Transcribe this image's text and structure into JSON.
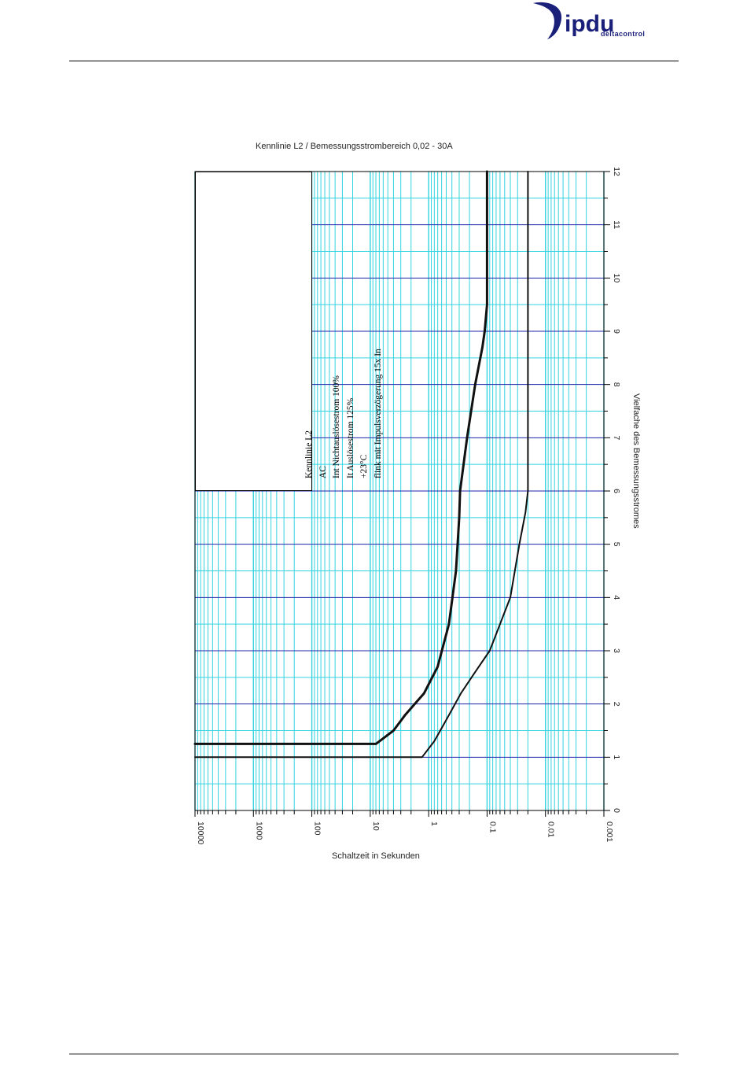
{
  "header": {
    "logo": {
      "text": "ipdu",
      "subtext": "deltacontrol",
      "color": "#1a1f7a"
    }
  },
  "chart_data": {
    "type": "line",
    "title": "Kennlinie L2 / Bemessungsstrombereich 0,02 - 30A",
    "xlabel": "Schaltzeit in Sekunden",
    "ylabel": "Vielfache des Bemessungsstromes",
    "x_scale": "log",
    "x_direction": "descending",
    "xlim": [
      10000,
      0.001
    ],
    "ylim": [
      0,
      12
    ],
    "x_ticks": [
      "10000",
      "1000",
      "100",
      "10",
      "1",
      "0.1",
      "0.01",
      "0.001"
    ],
    "y_ticks": [
      "0",
      "1",
      "2",
      "3",
      "4",
      "5",
      "6",
      "7",
      "8",
      "9",
      "10",
      "11",
      "12"
    ],
    "grid": true,
    "grid_colors": {
      "minor": "#33d3e0",
      "major": "#1c26a8"
    },
    "legend": {
      "placement": "top-left",
      "lines": [
        "Kennlinie L2",
        "AC",
        "Int Nichtauslösestrom 100%",
        "It Auslösestrom 125%",
        "+23°C",
        "flink mit Impulsverzögerung 15x In"
      ]
    },
    "series": [
      {
        "points": [
          [
            10000,
            1.25
          ],
          [
            8,
            1.25
          ],
          [
            4,
            1.5
          ],
          [
            2.5,
            1.8
          ],
          [
            1.2,
            2.2
          ],
          [
            0.7,
            2.7
          ],
          [
            0.45,
            3.5
          ],
          [
            0.34,
            4.5
          ],
          [
            0.3,
            5.5
          ],
          [
            0.29,
            6.0
          ],
          [
            0.22,
            7.0
          ],
          [
            0.16,
            8.0
          ],
          [
            0.12,
            8.7
          ],
          [
            0.11,
            9.0
          ],
          [
            0.1,
            9.5
          ],
          [
            0.1,
            12
          ]
        ]
      },
      {
        "points": [
          [
            10000,
            1.0
          ],
          [
            1.3,
            1.0
          ],
          [
            0.8,
            1.3
          ],
          [
            0.5,
            1.7
          ],
          [
            0.28,
            2.2
          ],
          [
            0.16,
            2.6
          ],
          [
            0.09,
            3.0
          ],
          [
            0.06,
            3.5
          ],
          [
            0.04,
            4.0
          ],
          [
            0.028,
            5.0
          ],
          [
            0.022,
            5.6
          ],
          [
            0.02,
            6.0
          ],
          [
            0.02,
            12
          ]
        ]
      }
    ]
  }
}
